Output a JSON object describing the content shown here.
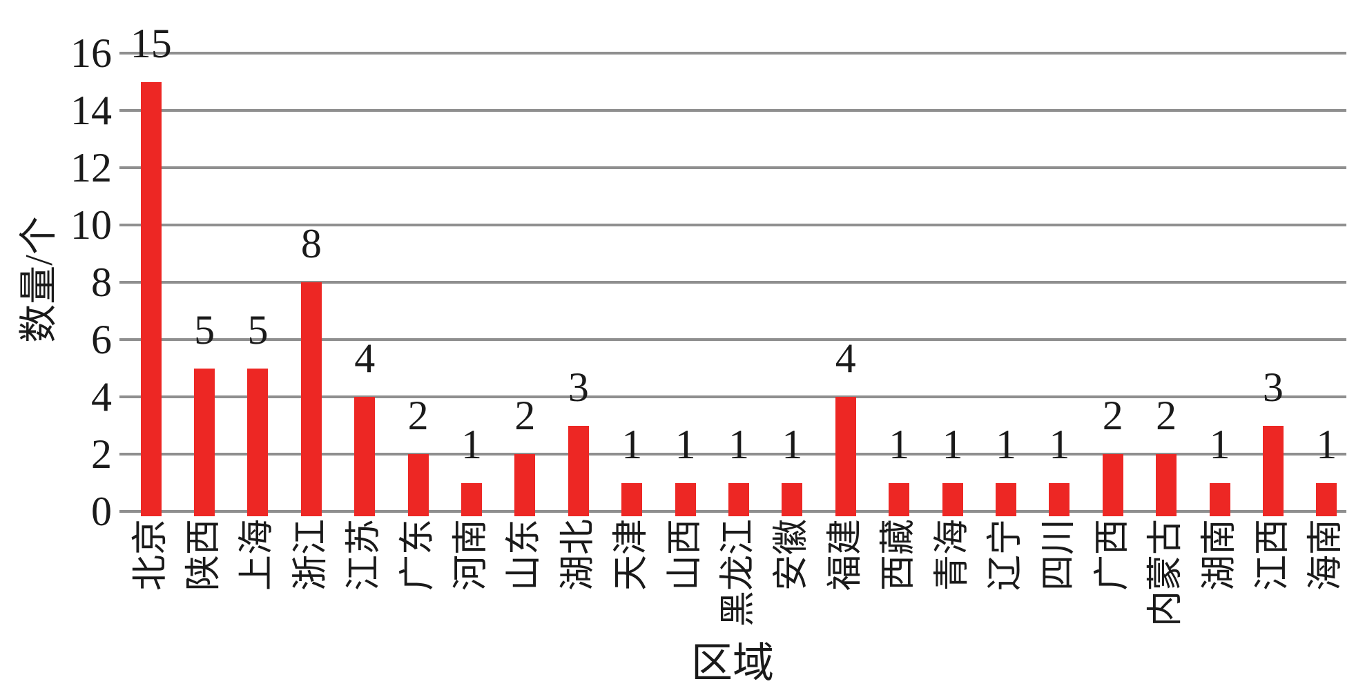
{
  "chart_data": {
    "type": "bar",
    "title": "",
    "xlabel": "区域",
    "ylabel": "数量/个",
    "categories": [
      "北京",
      "陕西",
      "上海",
      "浙江",
      "江苏",
      "广东",
      "河南",
      "山东",
      "湖北",
      "天津",
      "山西",
      "黑龙江",
      "安徽",
      "福建",
      "西藏",
      "青海",
      "辽宁",
      "四川",
      "广西",
      "内蒙古",
      "湖南",
      "江西",
      "海南"
    ],
    "values": [
      15,
      5,
      5,
      8,
      4,
      2,
      1,
      2,
      3,
      1,
      1,
      1,
      1,
      4,
      1,
      1,
      1,
      1,
      2,
      2,
      1,
      3,
      1
    ],
    "value_labels": [
      "15",
      "5",
      "5",
      "8",
      "4",
      "2",
      "1",
      "2",
      "3",
      "1",
      "1",
      "1",
      "1",
      "4",
      "1",
      "1",
      "1",
      "1",
      "2",
      "2",
      "1",
      "3",
      "1"
    ],
    "ylim": [
      0,
      16
    ],
    "yticks": [
      0,
      2,
      4,
      6,
      8,
      10,
      12,
      14,
      16
    ],
    "grid": "horizontal-only",
    "legend": "none",
    "bar_color": "#ED2724",
    "gridline_color": "#8F8F8F",
    "text_color": "#1A1A1A",
    "background_color": "#FFFFFF"
  }
}
